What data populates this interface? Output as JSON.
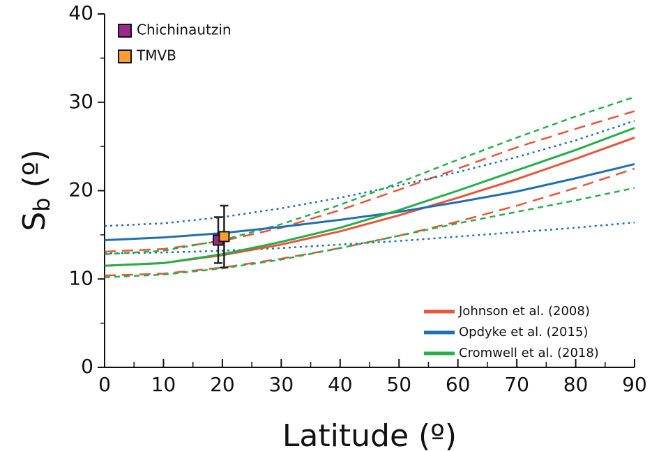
{
  "chart_data": {
    "type": "line",
    "x_label": "Latitude (º)",
    "y_label": "S",
    "y_label_sub": "b",
    "y_label_unit": " (º)",
    "x": [
      0,
      10,
      20,
      30,
      40,
      50,
      60,
      70,
      80,
      90
    ],
    "xlim": [
      0,
      90
    ],
    "xticks": [
      0,
      10,
      20,
      30,
      40,
      50,
      60,
      70,
      80,
      90
    ],
    "xminorticks": [
      5,
      15,
      25,
      35,
      45,
      55,
      65,
      75,
      85
    ],
    "ylim": [
      0,
      40
    ],
    "yticks": [
      0,
      10,
      20,
      30,
      40
    ],
    "yminorticks": [
      5,
      15,
      25,
      35
    ],
    "legend": "lower right",
    "series": [
      {
        "name": "Johnson et al. (2008)",
        "color": "#e8553a",
        "bounds_style": "dashed",
        "values": [
          11.5,
          11.8,
          12.7,
          13.9,
          15.4,
          17.2,
          19.2,
          21.3,
          23.6,
          26.0
        ],
        "upper": [
          13.1,
          13.4,
          14.3,
          15.8,
          17.8,
          20.1,
          22.5,
          24.9,
          27.0,
          29.0
        ],
        "lower": [
          10.4,
          10.6,
          11.3,
          12.3,
          13.5,
          14.9,
          16.5,
          18.3,
          20.3,
          22.5
        ]
      },
      {
        "name": "Opdyke et al. (2015)",
        "color": "#1f6fb2",
        "bounds_style": "dotted",
        "values": [
          14.4,
          14.7,
          15.2,
          15.9,
          16.7,
          17.6,
          18.7,
          19.9,
          21.4,
          23.0
        ],
        "upper": [
          16.0,
          16.3,
          17.0,
          18.0,
          19.2,
          20.6,
          22.1,
          23.8,
          25.7,
          27.9
        ],
        "lower": [
          12.9,
          13.0,
          13.2,
          13.5,
          13.9,
          14.3,
          14.8,
          15.3,
          15.8,
          16.4
        ]
      },
      {
        "name": "Cromwell et al. (2018)",
        "color": "#27ae4a",
        "bounds_style": "short-dashed",
        "values": [
          11.5,
          11.8,
          12.8,
          14.2,
          15.8,
          17.8,
          20.0,
          22.3,
          24.6,
          27.1
        ],
        "upper": [
          12.8,
          13.2,
          14.4,
          16.2,
          18.4,
          20.9,
          23.5,
          26.0,
          28.4,
          30.6
        ],
        "lower": [
          10.2,
          10.5,
          11.2,
          12.2,
          13.5,
          14.9,
          16.3,
          17.6,
          18.9,
          20.3
        ]
      }
    ],
    "points_legend": "upper left",
    "points": [
      {
        "name": "Chichinautzin",
        "color": "#9c2a8c",
        "x": 19.3,
        "y": 14.4,
        "err": 2.6
      },
      {
        "name": "TMVB",
        "color": "#f7a030",
        "x": 20.3,
        "y": 14.8,
        "err": 3.5
      }
    ]
  }
}
